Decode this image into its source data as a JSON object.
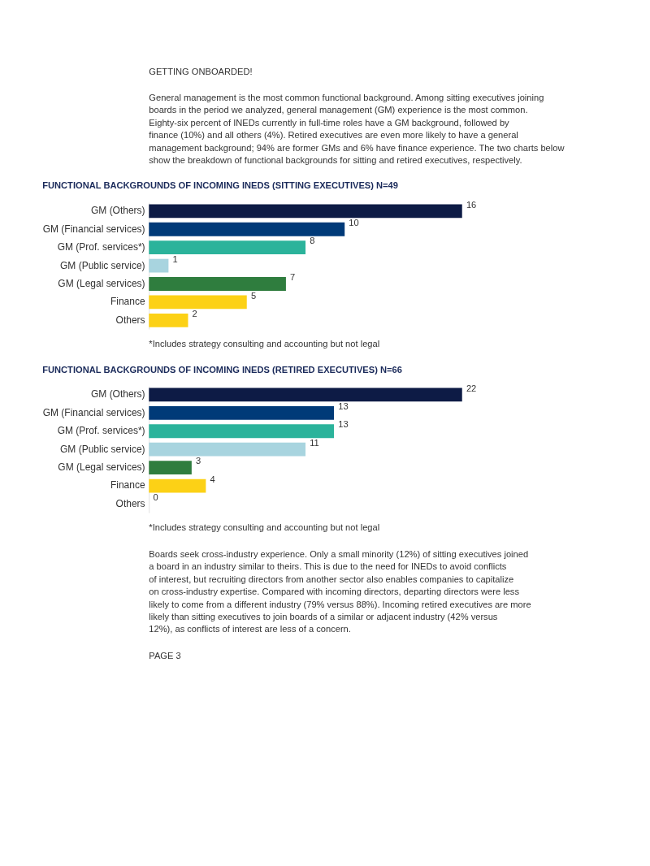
{
  "chart_data": [
    {
      "type": "bar",
      "orientation": "horizontal",
      "title": "FUNCTIONAL BACKGROUNDS OF INCOMING INEDS (SITTING EXECUTIVES) N=49",
      "categories": [
        "GM (Others)",
        "GM (Financial services)",
        "GM (Prof. services*)",
        "GM (Public service)",
        "GM (Legal services)",
        "Finance",
        "Others"
      ],
      "values": [
        16,
        10,
        8,
        1,
        7,
        5,
        2
      ],
      "colors": [
        "#0d1b45",
        "#003a78",
        "#2bb39b",
        "#a8d4df",
        "#2f7d3e",
        "#fcd116",
        "#fcd116"
      ],
      "data_labels": true,
      "grid": false,
      "legend": false,
      "annotations": [
        "GETTING ONBOARDED!",
        "General management is the most common functional background. Among sitting executives joining boards in the period we analyzed, general management (GM) experience is the most common. Eighty-six percent of INEDs currently in full-time roles have a GM background, followed by finance (10%) and all others (4%). Retired executives are even more likely to have a general management background; 94% are former GMs and 6% have finance experience. The two charts below show the breakdown of functional backgrounds for sitting and retired executives, respectively.",
        "*Includes strategy consulting and accounting but not legal"
      ]
    },
    {
      "type": "bar",
      "orientation": "horizontal",
      "title": "FUNCTIONAL BACKGROUNDS OF INCOMING INEDS (RETIRED EXECUTIVES) N=66",
      "categories": [
        "GM (Others)",
        "GM (Financial services)",
        "GM (Prof. services*)",
        "GM (Public service)",
        "GM (Legal services)",
        "Finance",
        "Others"
      ],
      "values": [
        22,
        13,
        13,
        11,
        3,
        4,
        0
      ],
      "colors": [
        "#0d1b45",
        "#003a78",
        "#2bb39b",
        "#a8d4df",
        "#2f7d3e",
        "#fcd116",
        "#fcd116"
      ],
      "data_labels": true,
      "grid": false,
      "legend": false,
      "annotations": [
        "*Includes strategy consulting and accounting but not legal",
        "Boards seek cross-industry experience. Only a small minority (12%) of sitting executives joined a board in an industry similar to theirs. This is due to the need for INEDs to avoid conflicts of interest, but recruiting directors from another sector also enables companies to capitalize on cross-industry expertise. Compared with incoming directors, departing directors were less likely to come from a different industry (79% versus 88%). Incoming retired executives are more likely than sitting executives to join boards of a similar or adjacent industry (42% versus 12%), as conflicts of interest are less of a concern.",
        "PAGE 3"
      ]
    }
  ]
}
